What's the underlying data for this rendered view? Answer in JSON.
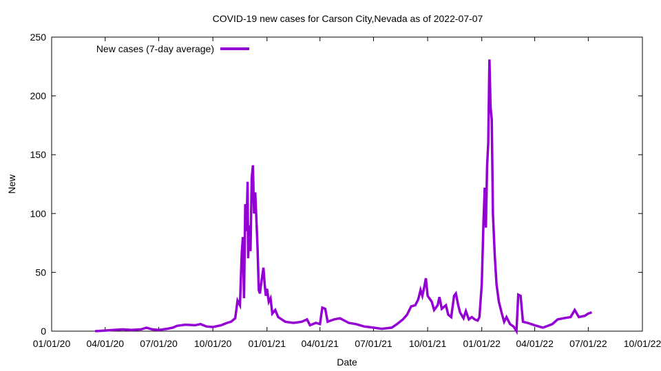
{
  "chart_data": {
    "type": "line",
    "title": "COVID-19 new cases for Carson City,Nevada as of 2022-07-07",
    "xlabel": "Date",
    "ylabel": "New",
    "xlim": [
      "2020-01-01",
      "2022-10-01"
    ],
    "ylim": [
      0,
      250
    ],
    "x_ticks": [
      "01/01/20",
      "04/01/20",
      "07/01/20",
      "10/01/20",
      "01/01/21",
      "04/01/21",
      "07/01/21",
      "10/01/21",
      "01/01/22",
      "04/01/22",
      "07/01/22",
      "10/01/22"
    ],
    "y_ticks": [
      0,
      50,
      100,
      150,
      200,
      250
    ],
    "grid": false,
    "legend_position": "top-left",
    "series": [
      {
        "name": "New cases (7-day average)",
        "color": "#9400d3",
        "points": [
          [
            "2020-03-15",
            0
          ],
          [
            "2020-04-01",
            0.5
          ],
          [
            "2020-04-15",
            1
          ],
          [
            "2020-05-01",
            1.5
          ],
          [
            "2020-05-15",
            1
          ],
          [
            "2020-06-01",
            1.5
          ],
          [
            "2020-06-10",
            3
          ],
          [
            "2020-06-20",
            1.5
          ],
          [
            "2020-07-01",
            1
          ],
          [
            "2020-07-15",
            2
          ],
          [
            "2020-07-25",
            3
          ],
          [
            "2020-08-01",
            4.5
          ],
          [
            "2020-08-15",
            5.5
          ],
          [
            "2020-09-01",
            5
          ],
          [
            "2020-09-10",
            6
          ],
          [
            "2020-09-20",
            4
          ],
          [
            "2020-10-01",
            3.5
          ],
          [
            "2020-10-15",
            5
          ],
          [
            "2020-10-25",
            7
          ],
          [
            "2020-11-01",
            8
          ],
          [
            "2020-11-08",
            11
          ],
          [
            "2020-11-12",
            26
          ],
          [
            "2020-11-16",
            22
          ],
          [
            "2020-11-19",
            65
          ],
          [
            "2020-11-21",
            80
          ],
          [
            "2020-11-23",
            28
          ],
          [
            "2020-11-25",
            108
          ],
          [
            "2020-11-27",
            85
          ],
          [
            "2020-11-29",
            127
          ],
          [
            "2020-11-30",
            62
          ],
          [
            "2020-12-02",
            90
          ],
          [
            "2020-12-04",
            68
          ],
          [
            "2020-12-06",
            130
          ],
          [
            "2020-12-08",
            141
          ],
          [
            "2020-12-10",
            100
          ],
          [
            "2020-12-12",
            118
          ],
          [
            "2020-12-14",
            95
          ],
          [
            "2020-12-16",
            70
          ],
          [
            "2020-12-18",
            35
          ],
          [
            "2020-12-20",
            32
          ],
          [
            "2020-12-22",
            40
          ],
          [
            "2020-12-26",
            54
          ],
          [
            "2020-12-28",
            40
          ],
          [
            "2020-12-30",
            30
          ],
          [
            "2021-01-01",
            36
          ],
          [
            "2021-01-04",
            25
          ],
          [
            "2021-01-07",
            28
          ],
          [
            "2021-01-10",
            15
          ],
          [
            "2021-01-15",
            18
          ],
          [
            "2021-01-20",
            12
          ],
          [
            "2021-02-01",
            8
          ],
          [
            "2021-02-15",
            7
          ],
          [
            "2021-03-01",
            8
          ],
          [
            "2021-03-10",
            10
          ],
          [
            "2021-03-15",
            5
          ],
          [
            "2021-03-25",
            7
          ],
          [
            "2021-04-01",
            6
          ],
          [
            "2021-04-05",
            20
          ],
          [
            "2021-04-10",
            19
          ],
          [
            "2021-04-14",
            8
          ],
          [
            "2021-04-25",
            10
          ],
          [
            "2021-05-05",
            11
          ],
          [
            "2021-05-20",
            7
          ],
          [
            "2021-06-01",
            6
          ],
          [
            "2021-06-15",
            4
          ],
          [
            "2021-07-01",
            3
          ],
          [
            "2021-07-15",
            2
          ],
          [
            "2021-08-01",
            3
          ],
          [
            "2021-08-10",
            6
          ],
          [
            "2021-08-20",
            10
          ],
          [
            "2021-08-27",
            14
          ],
          [
            "2021-09-03",
            21
          ],
          [
            "2021-09-10",
            22
          ],
          [
            "2021-09-15",
            27
          ],
          [
            "2021-09-19",
            35
          ],
          [
            "2021-09-22",
            30
          ],
          [
            "2021-09-25",
            37
          ],
          [
            "2021-09-28",
            45
          ],
          [
            "2021-10-01",
            30
          ],
          [
            "2021-10-08",
            25
          ],
          [
            "2021-10-12",
            18
          ],
          [
            "2021-10-18",
            22
          ],
          [
            "2021-10-21",
            29
          ],
          [
            "2021-10-25",
            19
          ],
          [
            "2021-11-01",
            22
          ],
          [
            "2021-11-05",
            14
          ],
          [
            "2021-11-10",
            12
          ],
          [
            "2021-11-15",
            30
          ],
          [
            "2021-11-18",
            32
          ],
          [
            "2021-11-22",
            22
          ],
          [
            "2021-11-25",
            16
          ],
          [
            "2021-12-01",
            11
          ],
          [
            "2021-12-05",
            17
          ],
          [
            "2021-12-10",
            10
          ],
          [
            "2021-12-15",
            12
          ],
          [
            "2021-12-20",
            10
          ],
          [
            "2021-12-25",
            9
          ],
          [
            "2021-12-28",
            12
          ],
          [
            "2022-01-01",
            40
          ],
          [
            "2022-01-04",
            95
          ],
          [
            "2022-01-06",
            122
          ],
          [
            "2022-01-08",
            88
          ],
          [
            "2022-01-10",
            140
          ],
          [
            "2022-01-12",
            160
          ],
          [
            "2022-01-14",
            231
          ],
          [
            "2022-01-16",
            190
          ],
          [
            "2022-01-18",
            180
          ],
          [
            "2022-01-20",
            100
          ],
          [
            "2022-01-23",
            65
          ],
          [
            "2022-01-26",
            40
          ],
          [
            "2022-01-30",
            25
          ],
          [
            "2022-02-04",
            15
          ],
          [
            "2022-02-08",
            8
          ],
          [
            "2022-02-12",
            12
          ],
          [
            "2022-02-18",
            6
          ],
          [
            "2022-02-24",
            4
          ],
          [
            "2022-03-01",
            0
          ],
          [
            "2022-03-04",
            31
          ],
          [
            "2022-03-08",
            30
          ],
          [
            "2022-03-12",
            8
          ],
          [
            "2022-03-20",
            7
          ],
          [
            "2022-04-01",
            5
          ],
          [
            "2022-04-15",
            3
          ],
          [
            "2022-05-01",
            6
          ],
          [
            "2022-05-10",
            10
          ],
          [
            "2022-05-20",
            11
          ],
          [
            "2022-06-01",
            12
          ],
          [
            "2022-06-08",
            18
          ],
          [
            "2022-06-15",
            12
          ],
          [
            "2022-06-25",
            13
          ],
          [
            "2022-07-01",
            15
          ],
          [
            "2022-07-07",
            16
          ]
        ]
      }
    ]
  }
}
